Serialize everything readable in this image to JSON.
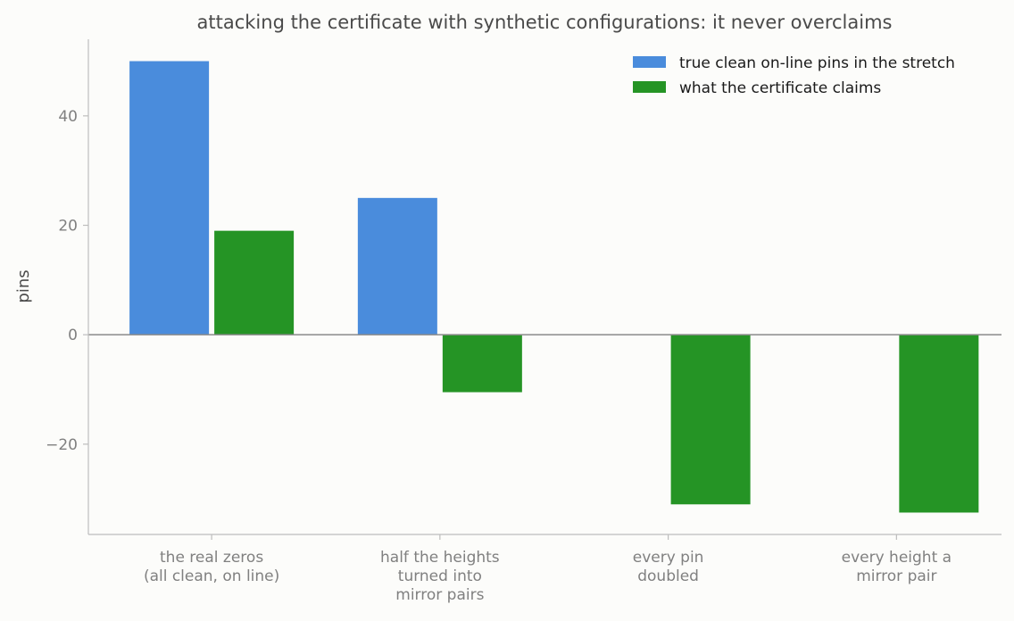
{
  "chart_data": {
    "type": "bar",
    "title": "attacking the certificate with synthetic configurations: it never overclaims",
    "ylabel": "pins",
    "xlabel": "",
    "categories": [
      [
        "the real zeros",
        "(all clean, on line)"
      ],
      [
        "half the heights",
        "turned into",
        "mirror pairs"
      ],
      [
        "every pin",
        "doubled"
      ],
      [
        "every height a",
        "mirror pair"
      ]
    ],
    "series": [
      {
        "name": "true clean on-line pins in the stretch",
        "color": "#4a8cdc",
        "values": [
          50,
          25,
          0,
          0
        ]
      },
      {
        "name": "what the certificate claims",
        "color": "#259425",
        "values": [
          19,
          -10.5,
          -31,
          -32.5
        ]
      }
    ],
    "ylim": [
      -36.5,
      54
    ],
    "yticks": [
      -20,
      0,
      20,
      40
    ],
    "ytick_labels": [
      "−20",
      "0",
      "20",
      "40"
    ],
    "grid": false,
    "legend": "top-right"
  }
}
